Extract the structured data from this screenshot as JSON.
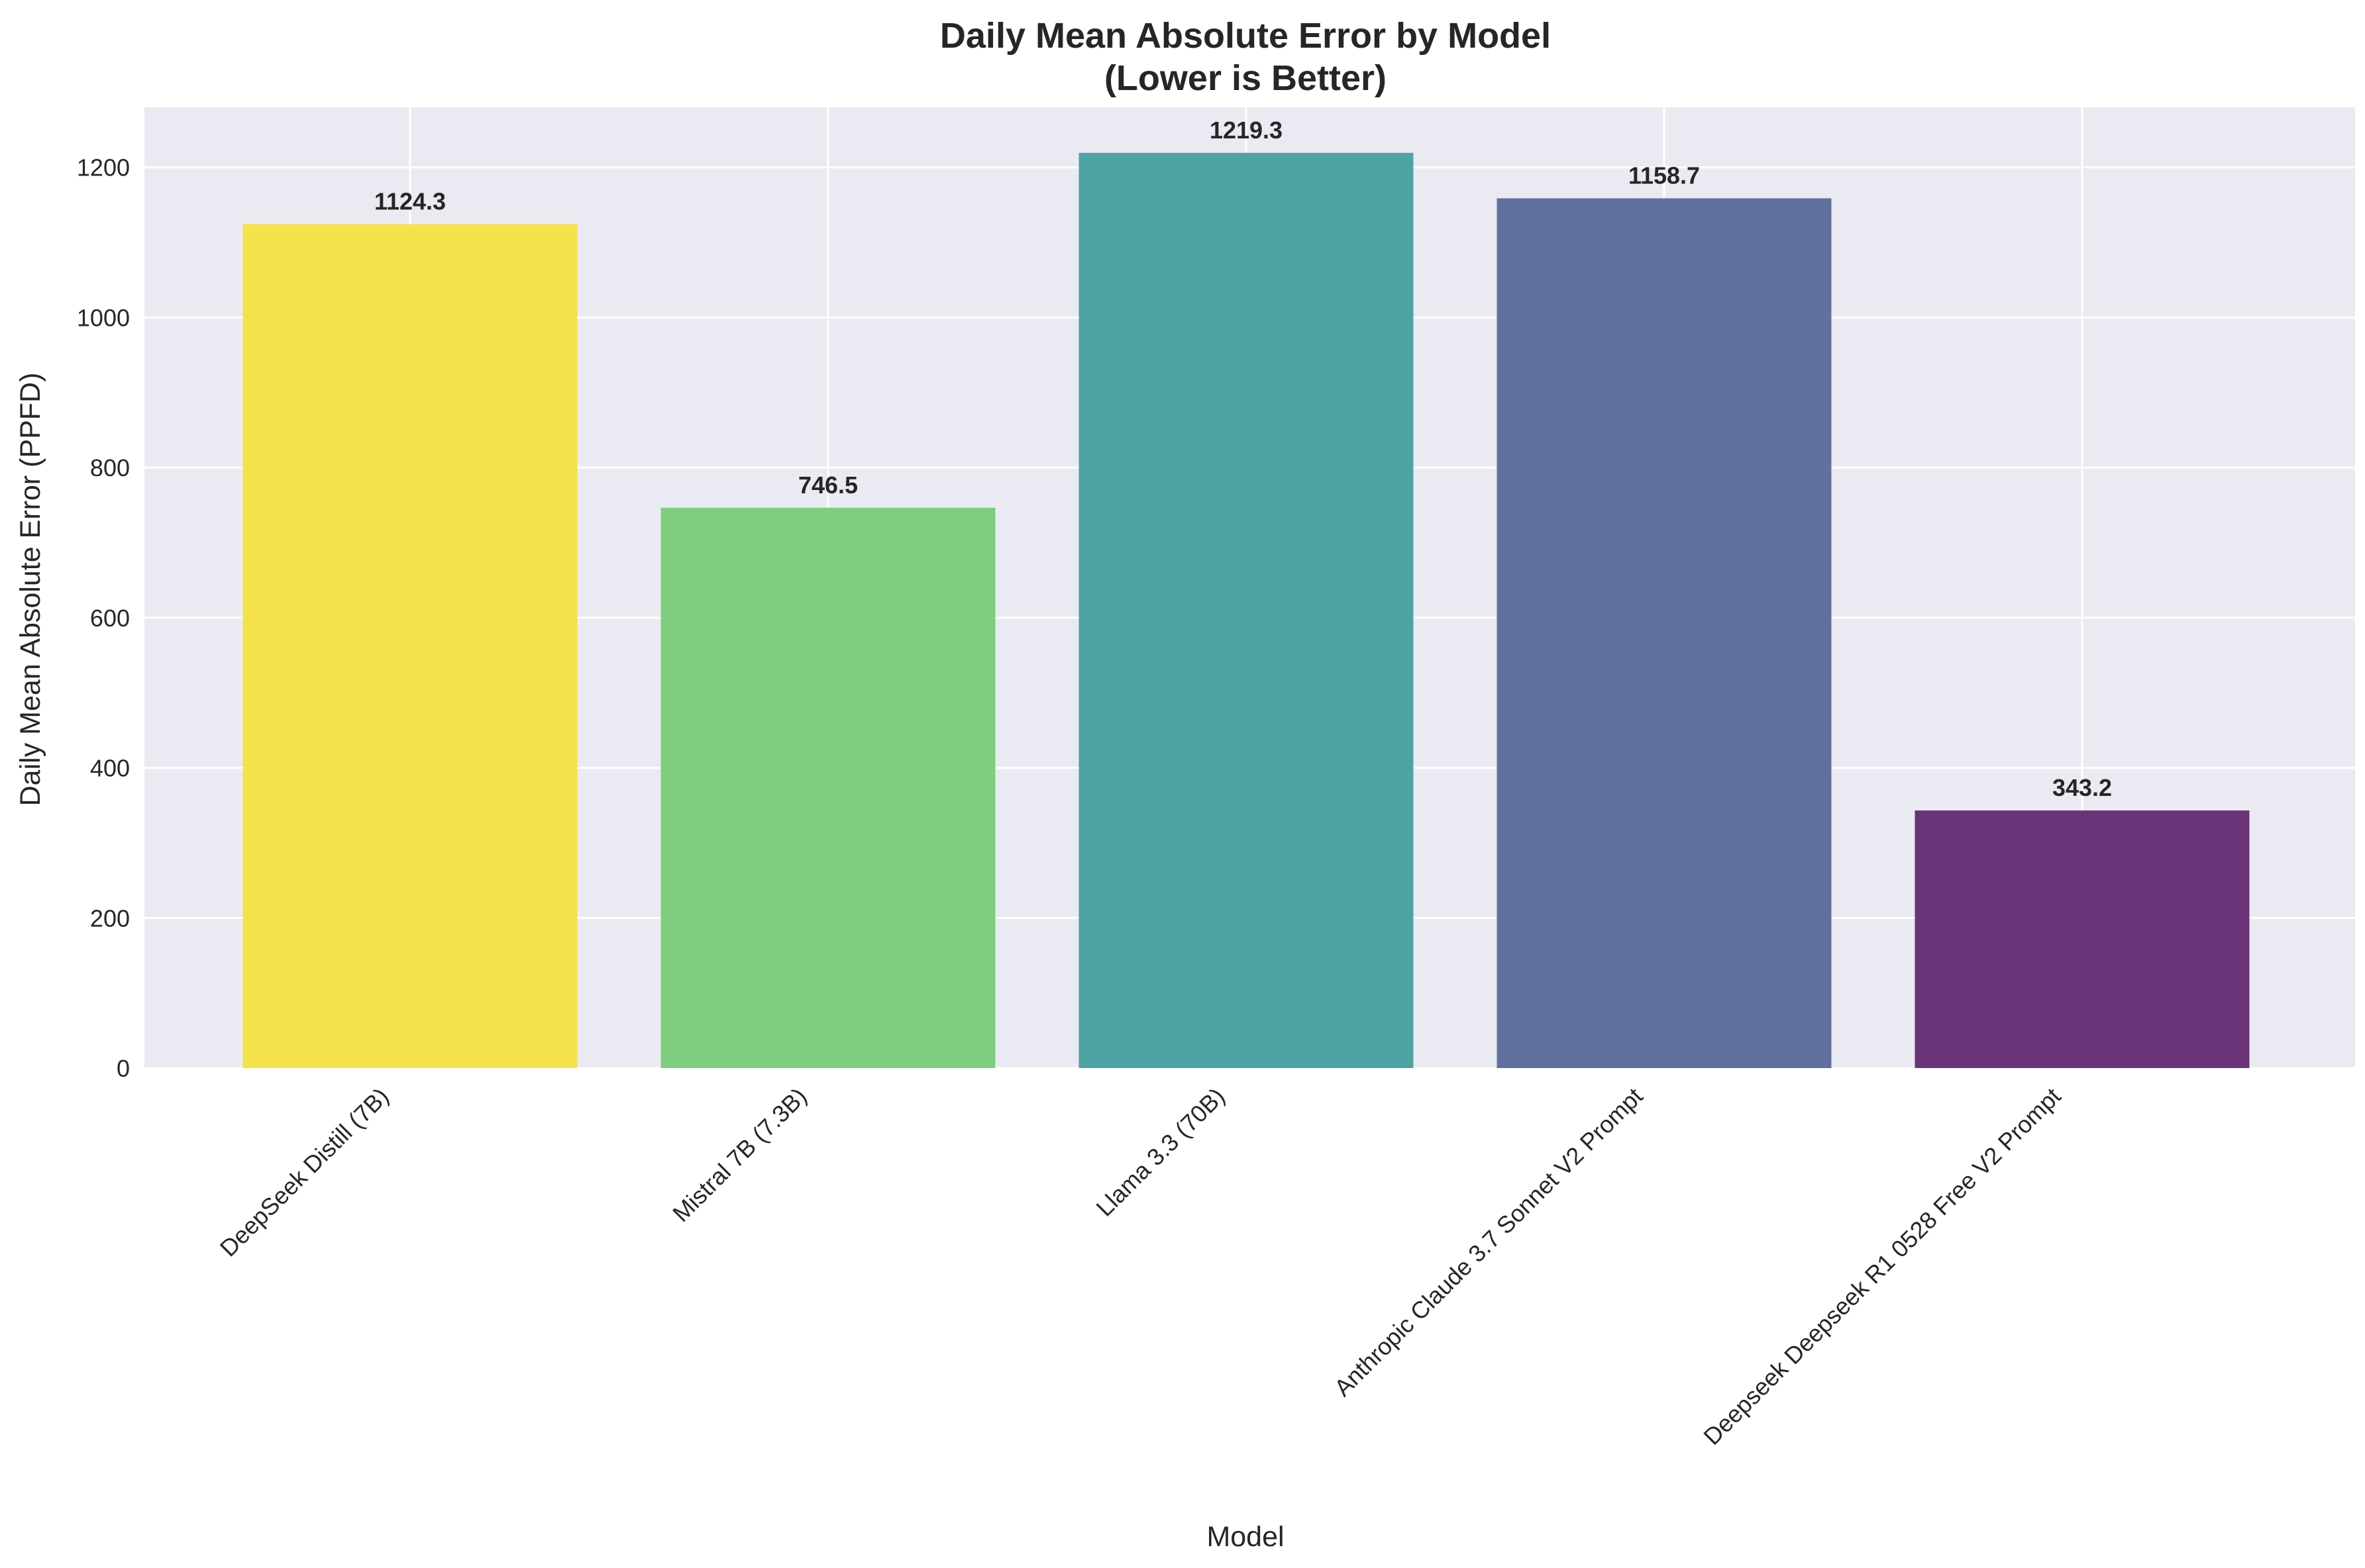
{
  "chart_data": {
    "type": "bar",
    "title": "Daily Mean Absolute Error by Model",
    "subtitle": "(Lower is Better)",
    "xlabel": "Model",
    "ylabel": "Daily Mean Absolute Error (PPFD)",
    "categories": [
      "DeepSeek Distill (7B)",
      "Mistral 7B (7.3B)",
      "Llama 3.3 (70B)",
      "Anthropic Claude 3.7 Sonnet V2 Prompt",
      "Deepseek Deepseek R1 0528 Free V2 Prompt"
    ],
    "values": [
      1124.3,
      746.5,
      1219.3,
      1158.7,
      343.2
    ],
    "value_labels": [
      "1124.3",
      "746.5",
      "1219.3",
      "1158.7",
      "343.2"
    ],
    "colors": [
      "#f5e24a",
      "#7fce7f",
      "#4ea3a3",
      "#62709f",
      "#6c3478"
    ],
    "ylim": [
      0,
      1280
    ],
    "yticks": [
      0,
      200,
      400,
      600,
      800,
      1000,
      1200
    ],
    "grid": true,
    "background": "#eaeaf2"
  }
}
